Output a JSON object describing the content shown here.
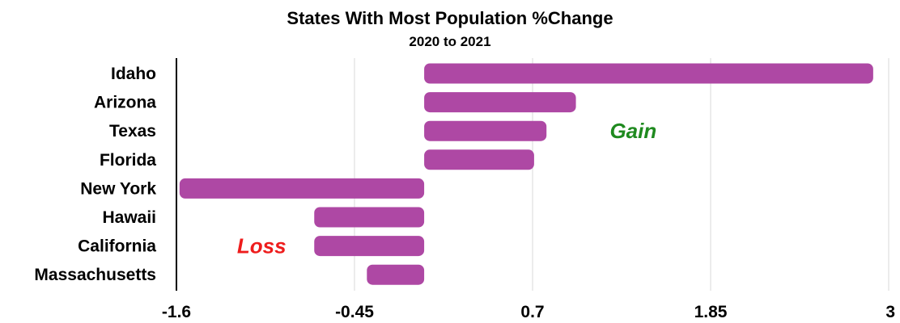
{
  "chart_data": {
    "type": "bar",
    "orientation": "horizontal",
    "title": "States With Most Population %Change",
    "subtitle": "2020 to 2021",
    "categories": [
      "Idaho",
      "Arizona",
      "Texas",
      "Florida",
      "New York",
      "Hawaii",
      "California",
      "Massachusetts"
    ],
    "values": [
      2.9,
      0.98,
      0.79,
      0.71,
      -1.58,
      -0.71,
      -0.71,
      -0.37
    ],
    "xlim": [
      -1.6,
      3
    ],
    "xticks": [
      -1.6,
      -0.45,
      0.7,
      1.85,
      3
    ],
    "xtick_labels": [
      "-1.6",
      "-0.45",
      "0.7",
      "1.85",
      "3"
    ],
    "xlabel": "",
    "ylabel": "",
    "grid": "vertical",
    "legend": "none",
    "bar_color": "#ae48a4",
    "annotations": [
      {
        "text": "Gain",
        "color": "#1f8a1f",
        "x": 1.35,
        "y_category": "Texas"
      },
      {
        "text": "Loss",
        "color": "#ee1c1c",
        "x": -1.05,
        "y_category": "California"
      }
    ]
  }
}
